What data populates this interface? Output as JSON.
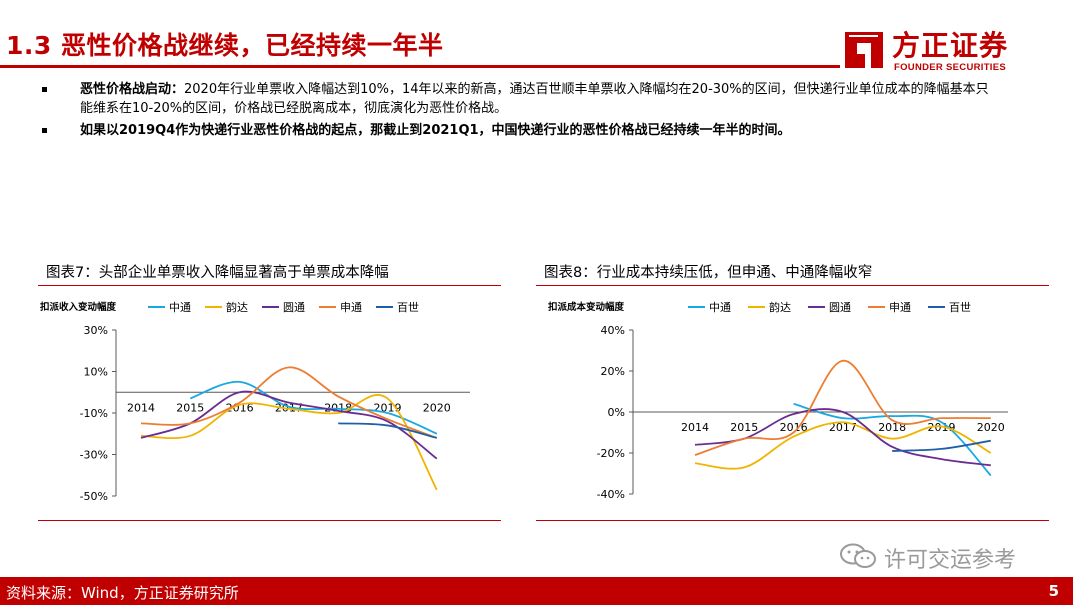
{
  "header": {
    "title": "1.3 恶性价格战继续，已经持续一年半",
    "logo_cn": "方正证券",
    "logo_en": "FOUNDER SECURITIES",
    "accent_color": "#c00000"
  },
  "bullets": [
    {
      "strong": "恶性价格战启动：",
      "text": "2020年行业单票收入降幅达到10%，14年以来的新高，通达百世顺丰单票收入降幅均在20-30%的区间，但快递行业单位成本的降幅基本只能维系在10-20%的区间，价格战已经脱离成本，彻底演化为恶性价格战。"
    },
    {
      "strong": "如果以2019Q4作为快递行业恶性价格战的起点，那截止到2021Q1，中国快递行业的恶性价格战已经持续一年半的时间。",
      "text": ""
    }
  ],
  "chart_data": [
    {
      "type": "line",
      "title": "图表7：头部企业单票收入降幅显著高于单票成本降幅",
      "ylabel": "扣派收入变动幅度",
      "categories": [
        "2014",
        "2015",
        "2016",
        "2017",
        "2018",
        "2019",
        "2020"
      ],
      "ylim": [
        -50,
        30
      ],
      "yticks": [
        30,
        10,
        -10,
        -30,
        -50
      ],
      "ytick_labels": [
        "30%",
        "10%",
        "-10%",
        "-30%",
        "-50%"
      ],
      "legend_position": "top",
      "series": [
        {
          "name": "中通",
          "color": "#17a9e1",
          "values": [
            null,
            -3,
            5,
            -7,
            -8,
            -10,
            -20
          ]
        },
        {
          "name": "韵达",
          "color": "#f0b400",
          "values": [
            -21,
            -21,
            -6,
            -8,
            -10,
            -3,
            -47
          ]
        },
        {
          "name": "圆通",
          "color": "#6a2c91",
          "values": [
            -22,
            -15,
            0,
            -5,
            -9,
            -14,
            -32
          ]
        },
        {
          "name": "申通",
          "color": "#ed7d31",
          "values": [
            -15,
            -15,
            -5,
            12,
            -2,
            -13,
            -22
          ]
        },
        {
          "name": "百世",
          "color": "#1f5fa8",
          "values": [
            null,
            null,
            null,
            null,
            -15,
            -16,
            -22
          ]
        }
      ]
    },
    {
      "type": "line",
      "title": "图表8：行业成本持续压低，但申通、中通降幅收窄",
      "ylabel": "扣派成本变动幅度",
      "categories": [
        "2014",
        "2015",
        "2016",
        "2017",
        "2018",
        "2019",
        "2020"
      ],
      "ylim": [
        -40,
        40
      ],
      "yticks": [
        40,
        20,
        0,
        -20,
        -40
      ],
      "ytick_labels": [
        "40%",
        "20%",
        "0%",
        "-20%",
        "-40%"
      ],
      "legend_position": "top",
      "series": [
        {
          "name": "中通",
          "color": "#17a9e1",
          "values": [
            null,
            null,
            4,
            -3,
            -2,
            -5,
            -31
          ]
        },
        {
          "name": "韵达",
          "color": "#f0b400",
          "values": [
            -25,
            -27,
            -12,
            -5,
            -13,
            -7,
            -20
          ]
        },
        {
          "name": "圆通",
          "color": "#6a2c91",
          "values": [
            -16,
            -13,
            -1,
            0,
            -17,
            -23,
            -26
          ]
        },
        {
          "name": "申通",
          "color": "#ed7d31",
          "values": [
            -21,
            -13,
            -10,
            25,
            -4,
            -3,
            -3
          ]
        },
        {
          "name": "百世",
          "color": "#1f5fa8",
          "values": [
            null,
            null,
            null,
            null,
            -19,
            -18,
            -14
          ]
        }
      ]
    }
  ],
  "footer": {
    "source": "资料来源：Wind，方正证券研究所",
    "page": "5"
  },
  "watermark": {
    "text": "许可交运参考",
    "icon": "wechat-icon"
  }
}
